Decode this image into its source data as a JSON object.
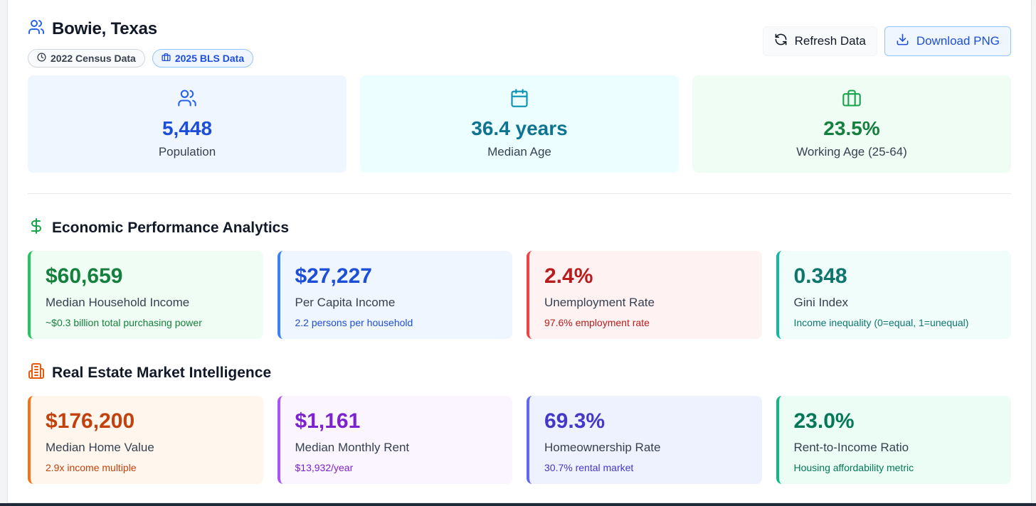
{
  "header": {
    "title": "Bowie, Texas",
    "title_icon": "users-icon",
    "badges": [
      {
        "label": "2022 Census Data",
        "icon": "clock-icon"
      },
      {
        "label": "2025 BLS Data",
        "icon": "briefcase-icon"
      }
    ],
    "actions": {
      "refresh_label": "Refresh Data",
      "download_label": "Download PNG"
    }
  },
  "summary": [
    {
      "value": "5,448",
      "label": "Population",
      "icon": "users-icon",
      "color": "#1d4ed8"
    },
    {
      "value": "36.4 years",
      "label": "Median Age",
      "icon": "calendar-icon",
      "color": "#0e7490"
    },
    {
      "value": "23.5%",
      "label": "Working Age (25-64)",
      "icon": "briefcase-icon",
      "color": "#15803d"
    }
  ],
  "economic": {
    "title": "Economic Performance Analytics",
    "icon": "dollar-icon",
    "cards": [
      {
        "value": "$60,659",
        "label": "Median Household Income",
        "sub": "~$0.3 billion total purchasing power"
      },
      {
        "value": "$27,227",
        "label": "Per Capita Income",
        "sub": "2.2 persons per household"
      },
      {
        "value": "2.4%",
        "label": "Unemployment Rate",
        "sub": "97.6% employment rate"
      },
      {
        "value": "0.348",
        "label": "Gini Index",
        "sub": "Income inequality (0=equal, 1=unequal)"
      }
    ]
  },
  "real_estate": {
    "title": "Real Estate Market Intelligence",
    "icon": "building-icon",
    "cards": [
      {
        "value": "$176,200",
        "label": "Median Home Value",
        "sub": "2.9x income multiple"
      },
      {
        "value": "$1,161",
        "label": "Median Monthly Rent",
        "sub": "$13,932/year"
      },
      {
        "value": "69.3%",
        "label": "Homeownership Rate",
        "sub": "30.7% rental market"
      },
      {
        "value": "23.0%",
        "label": "Rent-to-Income Ratio",
        "sub": "Housing affordability metric"
      }
    ]
  }
}
